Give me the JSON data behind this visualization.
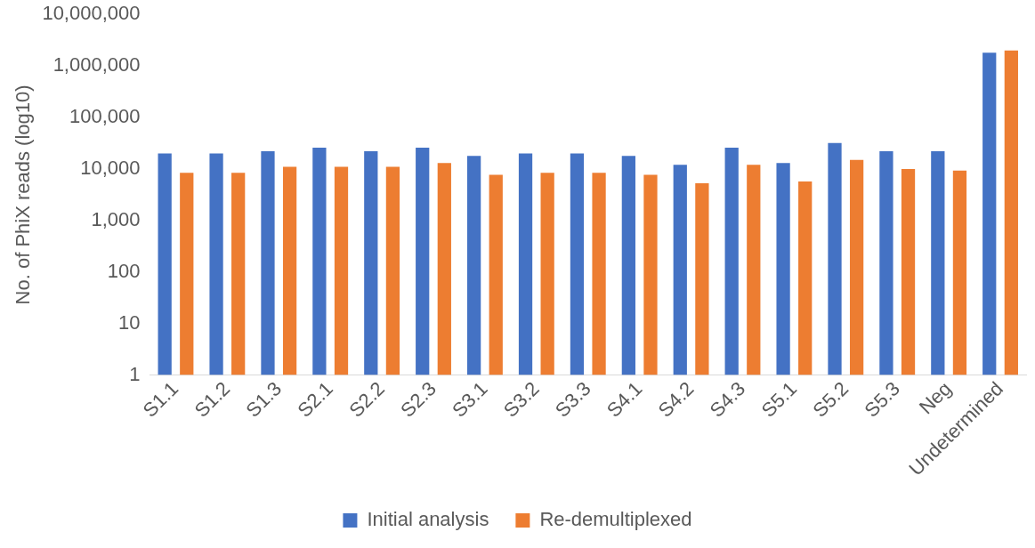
{
  "chart_data": {
    "type": "bar",
    "ylabel": "No. of PhiX reads (log10)",
    "log": true,
    "grid": false,
    "legend": "bottom",
    "categories": [
      "S1.1",
      "S1.2",
      "S1.3",
      "S2.1",
      "S2.2",
      "S2.3",
      "S3.1",
      "S3.2",
      "S3.3",
      "S4.1",
      "S4.2",
      "S4.3",
      "S5.1",
      "S5.2",
      "S5.3",
      "Neg",
      "Undetermined"
    ],
    "ylim": [
      1,
      10000000
    ],
    "yticks": [
      {
        "value": 1,
        "label": "1"
      },
      {
        "value": 10,
        "label": "10"
      },
      {
        "value": 100,
        "label": "100"
      },
      {
        "value": 1000,
        "label": "1,000"
      },
      {
        "value": 10000,
        "label": "10,000"
      },
      {
        "value": 100000,
        "label": "100,000"
      },
      {
        "value": 1000000,
        "label": "1,000,000"
      },
      {
        "value": 10000000,
        "label": "10,000,000"
      }
    ],
    "series": [
      {
        "name": "Initial analysis",
        "color": "#4472c4",
        "values": [
          20000,
          20000,
          22000,
          26000,
          22000,
          26000,
          18000,
          20000,
          20000,
          18000,
          12000,
          26000,
          13000,
          32000,
          22000,
          22000,
          1800000
        ]
      },
      {
        "name": "Re-demultiplexed",
        "color": "#ed7d31",
        "values": [
          8400,
          8400,
          11000,
          11000,
          11000,
          13000,
          7700,
          8400,
          8400,
          7700,
          5300,
          12000,
          5700,
          15000,
          10000,
          9300,
          2000000
        ]
      }
    ]
  }
}
